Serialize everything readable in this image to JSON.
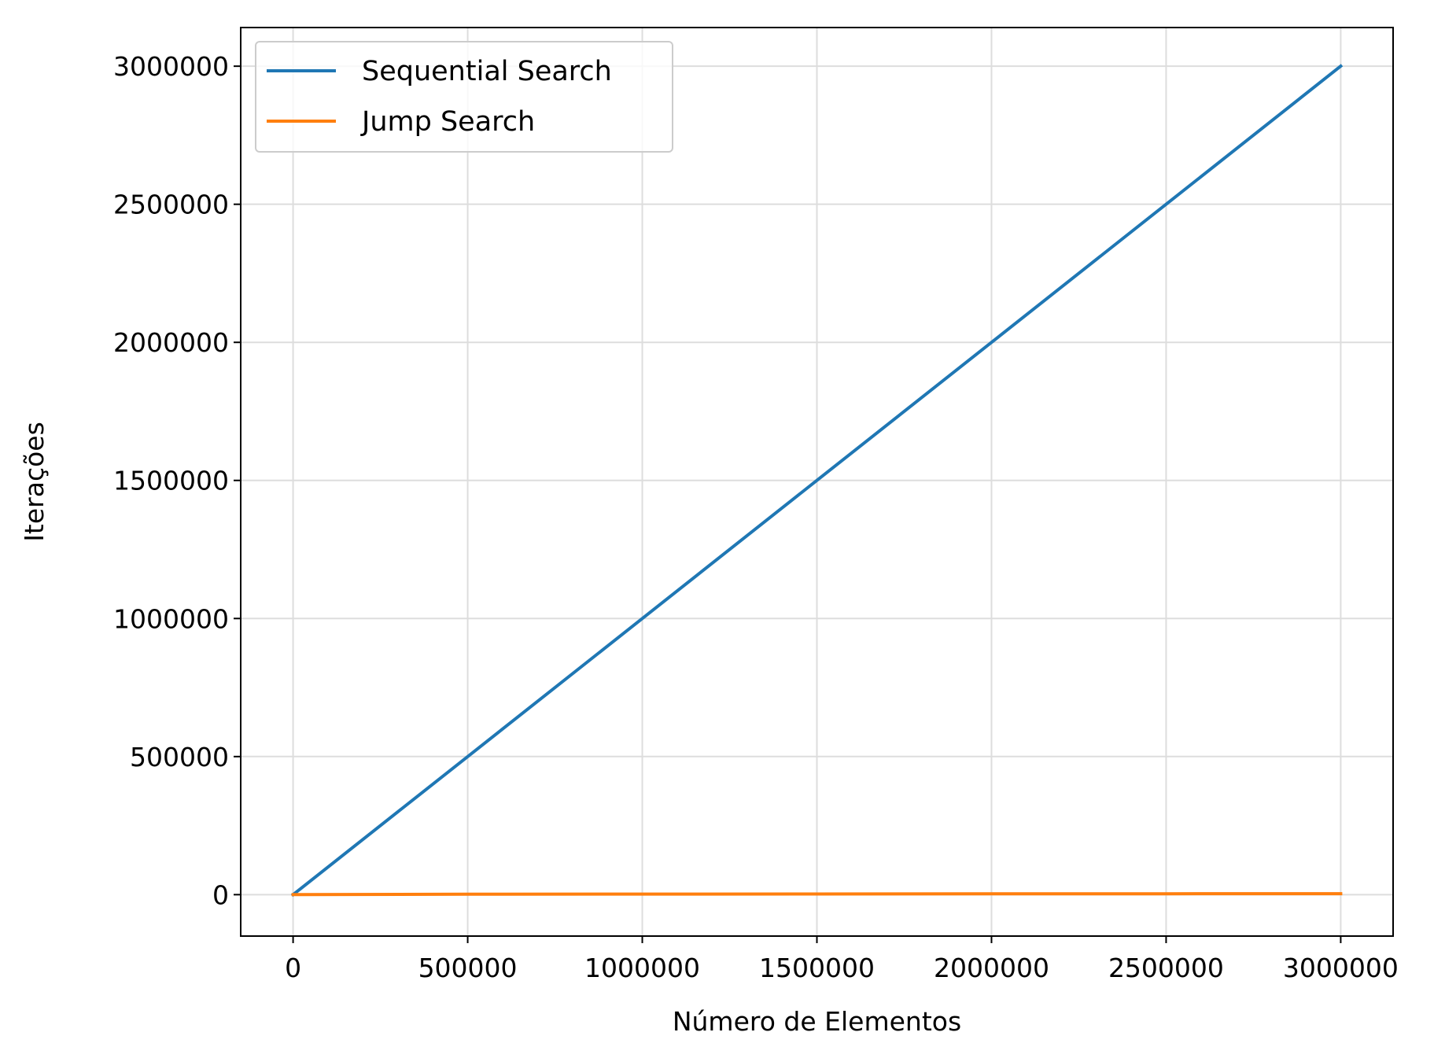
{
  "chart_data": {
    "type": "line",
    "xlabel": "Número de Elementos",
    "ylabel": "Iterações",
    "xlim": [
      -150000,
      3150000
    ],
    "ylim": [
      -150000,
      3140000
    ],
    "xticks": [
      0,
      500000,
      1000000,
      1500000,
      2000000,
      2500000,
      3000000
    ],
    "xtick_labels": [
      "0",
      "500000",
      "1000000",
      "1500000",
      "2000000",
      "2500000",
      "3000000"
    ],
    "yticks": [
      0,
      500000,
      1000000,
      1500000,
      2000000,
      2500000,
      3000000
    ],
    "ytick_labels": [
      "0",
      "500000",
      "1000000",
      "1500000",
      "2000000",
      "2500000",
      "3000000"
    ],
    "grid": true,
    "legend_position": "top-left",
    "series": [
      {
        "name": "Sequential Search",
        "color": "#1f77b4",
        "x": [
          0,
          500000,
          1000000,
          1500000,
          2000000,
          2500000,
          3000000
        ],
        "y": [
          0,
          500000,
          1000000,
          1500000,
          2000000,
          2500000,
          3000000
        ]
      },
      {
        "name": "Jump Search",
        "color": "#ff7f0e",
        "x": [
          0,
          500000,
          1000000,
          1500000,
          2000000,
          2500000,
          3000000
        ],
        "y": [
          0,
          1414,
          2000,
          2449,
          2828,
          3162,
          3464
        ]
      }
    ]
  }
}
